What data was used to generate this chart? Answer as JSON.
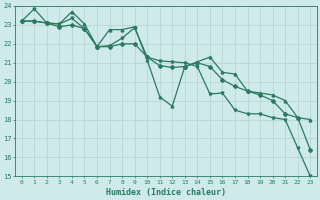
{
  "xlabel": "Humidex (Indice chaleur)",
  "xlim": [
    -0.5,
    23.5
  ],
  "ylim": [
    15,
    24
  ],
  "yticks": [
    15,
    16,
    17,
    18,
    19,
    20,
    21,
    22,
    23,
    24
  ],
  "xticks": [
    0,
    1,
    2,
    3,
    4,
    5,
    6,
    7,
    8,
    9,
    10,
    11,
    12,
    13,
    14,
    15,
    16,
    17,
    18,
    19,
    20,
    21,
    22,
    23
  ],
  "bg_color": "#ceeaea",
  "line_color": "#2a7a62",
  "grid_color": "#b8d0d0",
  "line1_y": [
    23.2,
    23.85,
    23.1,
    23.05,
    23.35,
    22.8,
    21.85,
    21.9,
    22.3,
    22.85,
    21.3,
    21.1,
    21.05,
    21.0,
    20.8,
    19.35,
    19.4,
    18.5,
    18.3,
    18.3,
    18.1,
    18.0,
    16.5,
    15.0
  ],
  "line2_y": [
    23.2,
    23.2,
    23.1,
    22.9,
    23.0,
    22.8,
    21.85,
    21.85,
    22.0,
    22.0,
    21.3,
    20.85,
    20.75,
    20.8,
    21.0,
    20.8,
    20.1,
    19.75,
    19.5,
    19.3,
    19.0,
    18.3,
    18.1,
    16.4
  ],
  "line3_y": [
    23.2,
    23.2,
    23.1,
    23.05,
    23.7,
    23.05,
    21.85,
    22.75,
    22.75,
    22.9,
    21.15,
    19.2,
    18.7,
    20.8,
    21.05,
    21.3,
    20.5,
    20.4,
    19.5,
    19.4,
    19.3,
    19.0,
    18.1,
    18.0
  ]
}
